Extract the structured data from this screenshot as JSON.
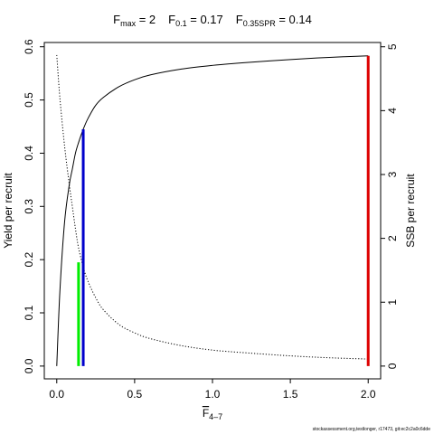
{
  "chart_data": {
    "type": "line",
    "title_parts": [
      {
        "main": "F",
        "sub": "max",
        "rest": " = 2"
      },
      {
        "main": "F",
        "sub": "0.1",
        "rest": " = 0.17"
      },
      {
        "main": "F",
        "sub": "0.35SPR",
        "rest": " = 0.14"
      }
    ],
    "xlabel": {
      "main": "F",
      "sub": "4–7"
    },
    "ylabel_left": "Yield per recruit",
    "ylabel_right": "SSB per recruit",
    "xlim": [
      -0.08,
      2.08
    ],
    "ylim_left": [
      -0.024,
      0.608
    ],
    "ylim_right": [
      -0.2,
      5.067
    ],
    "x_ticks": [
      0,
      0.5,
      1,
      1.5,
      2
    ],
    "x_tick_labels": [
      "0.0",
      "0.5",
      "1.0",
      "1.5",
      "2.0"
    ],
    "y_left_ticks": [
      0,
      0.1,
      0.2,
      0.3,
      0.4,
      0.5,
      0.6
    ],
    "y_left_tick_labels": [
      "0.0",
      "0.1",
      "0.2",
      "0.3",
      "0.4",
      "0.5",
      "0.6"
    ],
    "y_right_ticks": [
      0,
      1,
      2,
      3,
      4,
      5
    ],
    "y_right_tick_labels": [
      "0",
      "1",
      "2",
      "3",
      "4",
      "5"
    ],
    "grid": false,
    "series": [
      {
        "axis": "left",
        "style": "solid",
        "color": "#000000",
        "x": [
          0,
          0.02,
          0.05,
          0.08,
          0.1,
          0.12,
          0.14,
          0.17,
          0.2,
          0.25,
          0.3,
          0.4,
          0.5,
          0.6,
          0.8,
          1.0,
          1.2,
          1.5,
          1.75,
          2.0
        ],
        "y": [
          0.0,
          0.14,
          0.27,
          0.34,
          0.37,
          0.4,
          0.42,
          0.445,
          0.465,
          0.49,
          0.505,
          0.525,
          0.538,
          0.547,
          0.558,
          0.565,
          0.57,
          0.576,
          0.58,
          0.583
        ]
      },
      {
        "axis": "right",
        "style": "dotted",
        "color": "#000000",
        "x": [
          0,
          0.02,
          0.05,
          0.08,
          0.1,
          0.12,
          0.14,
          0.17,
          0.2,
          0.25,
          0.3,
          0.4,
          0.5,
          0.6,
          0.8,
          1.0,
          1.2,
          1.5,
          1.75,
          2.0
        ],
        "y": [
          4.87,
          4.2,
          3.45,
          2.85,
          2.5,
          2.15,
          1.85,
          1.55,
          1.33,
          1.07,
          0.88,
          0.65,
          0.52,
          0.43,
          0.32,
          0.25,
          0.21,
          0.16,
          0.13,
          0.11
        ]
      }
    ],
    "reference_lines": [
      {
        "label": "F0.35SPR",
        "x": 0.14,
        "y_top": 0.195,
        "color": "#00ee00"
      },
      {
        "label": "F0.1",
        "x": 0.17,
        "y_top": 0.445,
        "color": "#0000cc"
      },
      {
        "label": "Fmax",
        "x": 2.0,
        "y_top": 0.583,
        "color": "#dd0000"
      }
    ]
  },
  "footer": "stockassessment.org,testlonger, r17473, git:ec2c2a0c6dde"
}
